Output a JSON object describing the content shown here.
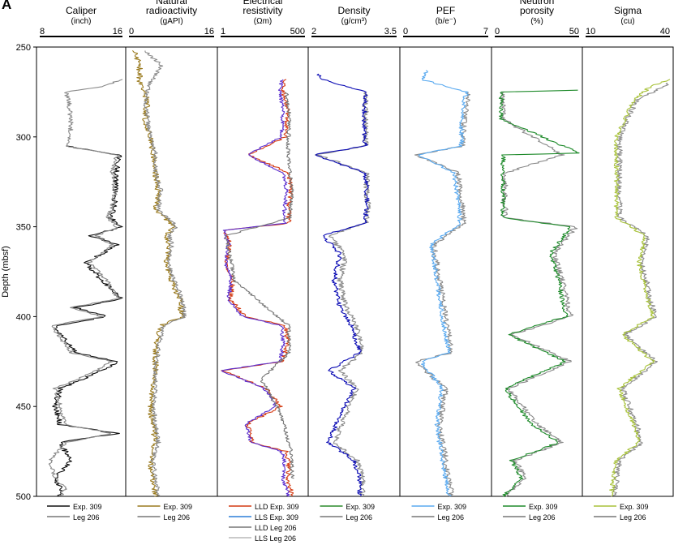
{
  "panel_label": "A",
  "chart_data": {
    "type": "line",
    "shared_y_axis": {
      "label": "Depth (mbsf)",
      "range": [
        250,
        500
      ],
      "inverted": true,
      "ticks": [
        "250",
        "300",
        "350",
        "400",
        "450",
        "500"
      ]
    },
    "tracks": [
      {
        "id": "caliper",
        "title": [
          "Caliper",
          "(inch)"
        ],
        "range": [
          8,
          16
        ],
        "tick_labels": [
          "8",
          "16"
        ],
        "legend": [
          {
            "label": "Exp. 309",
            "color": "#111111"
          },
          {
            "label": "Leg 206",
            "color": "#777777"
          }
        ],
        "series": [
          {
            "label": "Exp. 309",
            "color": "#111111",
            "depth": [
              305,
              310,
              320,
              330,
              340,
              345,
              350,
              355,
              360,
              370,
              380,
              390,
              395,
              400,
              405,
              410,
              420,
              425,
              430,
              440,
              450,
              460,
              465,
              470,
              480,
              490,
              495,
              500
            ],
            "value": [
              10.5,
              15.7,
              15.4,
              15.3,
              15.2,
              14.8,
              16.0,
              13.0,
              15.5,
              12.5,
              14.0,
              16.0,
              11.5,
              14.5,
              9.5,
              10.0,
              11.5,
              15.5,
              14.0,
              10.0,
              9.5,
              10.0,
              15.5,
              10.0,
              11.0,
              9.5,
              10.0,
              10.0
            ]
          },
          {
            "label": "Leg 206",
            "color": "#8a8a8a",
            "depth": [
              268,
              272,
              275,
              280,
              290,
              300,
              305,
              310,
              320,
              330,
              340,
              345,
              350,
              355,
              360,
              370,
              380,
              390,
              395,
              400,
              405,
              410,
              420,
              425,
              430,
              440,
              450,
              460,
              465,
              470,
              480,
              490,
              495,
              500
            ],
            "value": [
              16.0,
              14.0,
              10.5,
              10.8,
              11.0,
              11.0,
              10.5,
              15.5,
              15.0,
              15.3,
              15.0,
              14.5,
              15.5,
              13.5,
              15.0,
              12.8,
              14.5,
              15.5,
              11.0,
              14.0,
              9.2,
              9.8,
              11.0,
              15.0,
              13.5,
              9.5,
              10.0,
              10.5,
              15.0,
              10.5,
              9.0,
              9.5,
              10.5,
              10.0
            ]
          }
        ]
      },
      {
        "id": "radioactivity",
        "title": [
          "Natural",
          "radioactivity",
          "(gAPI)"
        ],
        "range": [
          0,
          16
        ],
        "tick_labels": [
          "0",
          "16"
        ],
        "legend": [
          {
            "label": "Exp. 309",
            "color": "#9a7a1e"
          },
          {
            "label": "Leg 206",
            "color": "#777777"
          }
        ],
        "series": [
          {
            "label": "Exp. 309",
            "color": "#9a7a1e",
            "depth": [
              252,
              260,
              270,
              280,
              290,
              300,
              310,
              320,
              330,
              340,
              350,
              355,
              360,
              370,
              380,
              390,
              400,
              405,
              410,
              420,
              430,
              440,
              450,
              460,
              470,
              480,
              490,
              500
            ],
            "value": [
              1.0,
              2.0,
              2.0,
              3.5,
              3.0,
              4.0,
              4.5,
              5.0,
              5.5,
              5.0,
              8.5,
              7.0,
              7.5,
              7.0,
              8.0,
              9.5,
              10.0,
              6.0,
              5.5,
              5.0,
              5.0,
              4.5,
              4.0,
              4.5,
              5.0,
              4.0,
              4.5,
              5.0
            ]
          },
          {
            "label": "Leg 206",
            "color": "#8a8a8a",
            "depth": [
              252,
              260,
              270,
              280,
              290,
              300,
              310,
              320,
              330,
              340,
              350,
              355,
              360,
              370,
              380,
              390,
              400,
              405,
              410,
              420,
              430,
              440,
              450,
              460,
              470,
              480,
              490,
              500
            ],
            "value": [
              3.0,
              6.0,
              4.0,
              3.0,
              3.5,
              4.0,
              5.0,
              5.0,
              6.0,
              5.5,
              9.0,
              7.5,
              8.0,
              7.5,
              8.5,
              10.0,
              10.5,
              6.5,
              6.0,
              5.5,
              5.0,
              5.0,
              4.5,
              5.0,
              5.5,
              4.5,
              5.0,
              5.5
            ]
          }
        ]
      },
      {
        "id": "resistivity",
        "title": [
          "Electrical",
          "resistivity",
          "(Ωm)"
        ],
        "range": [
          1,
          500
        ],
        "scale": "log",
        "tick_labels": [
          "1",
          "500"
        ],
        "legend": [
          {
            "label": "LLD Exp. 309",
            "color": "#d43a12"
          },
          {
            "label": "LLS Exp. 309",
            "color": "#2c7fd8"
          },
          {
            "label": "LLD Leg 206",
            "color": "#777777"
          },
          {
            "label": "LLS Leg 206",
            "color": "#b8b8b8"
          }
        ],
        "series": [
          {
            "label": "LLD Exp. 309",
            "color": "#d43a12",
            "depth": [
              268,
              275,
              285,
              300,
              310,
              320,
              330,
              340,
              348,
              352,
              360,
              370,
              380,
              390,
              400,
              405,
              415,
              425,
              430,
              440,
              450,
              460,
              465,
              470,
              475,
              480,
              490,
              500
            ],
            "value": [
              120,
              100,
              140,
              120,
              8,
              150,
              180,
              150,
              150,
              1.3,
              2.0,
              1.5,
              2.5,
              2.0,
              6,
              120,
              140,
              100,
              1.1,
              30,
              80,
              7,
              10,
              10,
              120,
              150,
              140,
              200
            ]
          },
          {
            "label": "LLS Exp. 309",
            "color": "#5b2fd0",
            "depth": [
              268,
              275,
              285,
              300,
              310,
              320,
              330,
              340,
              348,
              352,
              360,
              370,
              380,
              390,
              400,
              405,
              415,
              425,
              430,
              440,
              450,
              460,
              465,
              470,
              475,
              480,
              490,
              500
            ],
            "value": [
              90,
              80,
              100,
              90,
              7,
              100,
              130,
              110,
              110,
              1.2,
              1.8,
              1.4,
              2.2,
              1.8,
              5,
              90,
              100,
              80,
              1.05,
              25,
              60,
              6,
              8,
              9,
              90,
              110,
              100,
              150
            ]
          },
          {
            "label": "LLD Leg 206",
            "color": "#777777",
            "depth": [
              275,
              290,
              310,
              330,
              345,
              355,
              380,
              405,
              420,
              435,
              455,
              475,
              490
            ],
            "value": [
              130,
              160,
              140,
              200,
              160,
              1.5,
              2.8,
              150,
              160,
              20,
              90,
              180,
              200
            ]
          }
        ]
      },
      {
        "id": "density",
        "title": [
          "Density",
          "(g/cm³)"
        ],
        "range": [
          2,
          3.5
        ],
        "tick_labels": [
          "2",
          "3.5"
        ],
        "legend": [
          {
            "label": "Exp. 309",
            "color": "#2a8a2a"
          },
          {
            "label": "Leg 206",
            "color": "#777777"
          }
        ],
        "series": [
          {
            "label": "Leg 206",
            "color": "#8a8a8a",
            "depth": [
              275,
              290,
              305,
              310,
              320,
              330,
              340,
              348,
              355,
              365,
              380,
              395,
              405,
              420,
              430,
              440,
              455,
              470,
              480,
              490,
              500
            ],
            "value": [
              2.95,
              2.95,
              2.95,
              2.1,
              2.98,
              2.97,
              3.0,
              2.95,
              2.3,
              2.6,
              2.5,
              2.6,
              2.8,
              2.9,
              2.5,
              2.8,
              2.6,
              2.4,
              2.8,
              2.9,
              2.9
            ]
          },
          {
            "label": "Exp. 309",
            "color": "#0a0ab4",
            "depth": [
              265,
              268,
              275,
              290,
              305,
              310,
              320,
              330,
              340,
              348,
              355,
              365,
              380,
              395,
              405,
              420,
              430,
              440,
              455,
              470,
              480,
              490,
              500
            ],
            "value": [
              2.1,
              2.2,
              2.95,
              2.93,
              2.95,
              2.05,
              2.95,
              2.97,
              2.98,
              2.93,
              2.2,
              2.5,
              2.4,
              2.5,
              2.7,
              2.85,
              2.3,
              2.75,
              2.5,
              2.3,
              2.75,
              2.85,
              2.85
            ]
          }
        ]
      },
      {
        "id": "pef",
        "title": [
          "PEF",
          "(b/e⁻)"
        ],
        "range": [
          0,
          7
        ],
        "tick_labels": [
          "0",
          "7"
        ],
        "legend": [
          {
            "label": "Exp. 309",
            "color": "#5aaaf0"
          },
          {
            "label": "Leg 206",
            "color": "#777777"
          }
        ],
        "series": [
          {
            "label": "Leg 206",
            "color": "#8a8a8a",
            "depth": [
              275,
              290,
              305,
              310,
              320,
              335,
              348,
              360,
              380,
              400,
              420,
              425,
              440,
              460,
              480,
              500
            ],
            "value": [
              5.5,
              5.0,
              5.0,
              1.0,
              4.5,
              4.8,
              5.0,
              2.5,
              3.0,
              3.5,
              4.0,
              1.0,
              3.5,
              3.0,
              3.5,
              4.0
            ]
          },
          {
            "label": "Exp. 309",
            "color": "#5aaaf0",
            "depth": [
              263,
              268,
              275,
              290,
              305,
              310,
              320,
              335,
              348,
              360,
              380,
              400,
              420,
              425,
              440,
              460,
              480,
              500
            ],
            "value": [
              2.0,
              1.5,
              5.2,
              4.8,
              4.8,
              1.2,
              4.2,
              4.5,
              4.7,
              2.3,
              2.8,
              3.2,
              3.8,
              1.5,
              3.2,
              2.8,
              3.2,
              3.8
            ]
          }
        ]
      },
      {
        "id": "porosity",
        "title": [
          "Neutron",
          "porosity",
          "(%)"
        ],
        "range": [
          0,
          50
        ],
        "tick_labels": [
          "0",
          "50"
        ],
        "legend": [
          {
            "label": "Exp. 309",
            "color": "#1e8a2a"
          },
          {
            "label": "Leg 206",
            "color": "#777777"
          }
        ],
        "series": [
          {
            "label": "Leg 206",
            "color": "#8a8a8a",
            "depth": [
              275,
              290,
              310,
              320,
              345,
              350,
              365,
              380,
              400,
              410,
              425,
              440,
              460,
              470,
              480,
              490,
              500
            ],
            "value": [
              5,
              5,
              40,
              6,
              6,
              48,
              35,
              40,
              45,
              10,
              45,
              8,
              25,
              40,
              12,
              18,
              6
            ]
          },
          {
            "label": "Exp. 309",
            "color": "#1e8a2a",
            "depth": [
              274,
              275,
              290,
              309,
              310,
              320,
              345,
              350,
              365,
              380,
              400,
              410,
              425,
              440,
              460,
              470,
              480,
              490,
              500
            ],
            "value": [
              50,
              4,
              4,
              50,
              5,
              5,
              5,
              45,
              33,
              38,
              42,
              8,
              42,
              6,
              22,
              38,
              10,
              16,
              5
            ]
          }
        ]
      },
      {
        "id": "sigma",
        "title": [
          "Sigma",
          "(cu)"
        ],
        "range": [
          10,
          40
        ],
        "tick_labels": [
          "10",
          "40"
        ],
        "legend": [
          {
            "label": "Exp. 309",
            "color": "#a8c23a"
          },
          {
            "label": "Leg 206",
            "color": "#777777"
          }
        ],
        "series": [
          {
            "label": "Leg 206",
            "color": "#8a8a8a",
            "depth": [
              270,
              280,
              300,
              320,
              345,
              355,
              370,
              390,
              400,
              410,
              425,
              440,
              460,
              470,
              480,
              500
            ],
            "value": [
              40,
              28,
              22,
              22,
              22,
              32,
              30,
              33,
              35,
              24,
              35,
              23,
              28,
              30,
              22,
              20
            ]
          },
          {
            "label": "Exp. 309",
            "color": "#a8c23a",
            "depth": [
              268,
              272,
              280,
              300,
              320,
              345,
              355,
              370,
              390,
              400,
              410,
              425,
              440,
              460,
              470,
              480,
              500
            ],
            "value": [
              40,
              33,
              27,
              21,
              21,
              21,
              31,
              29,
              32,
              34,
              23,
              34,
              22,
              27,
              29,
              21,
              19
            ]
          }
        ]
      }
    ]
  }
}
